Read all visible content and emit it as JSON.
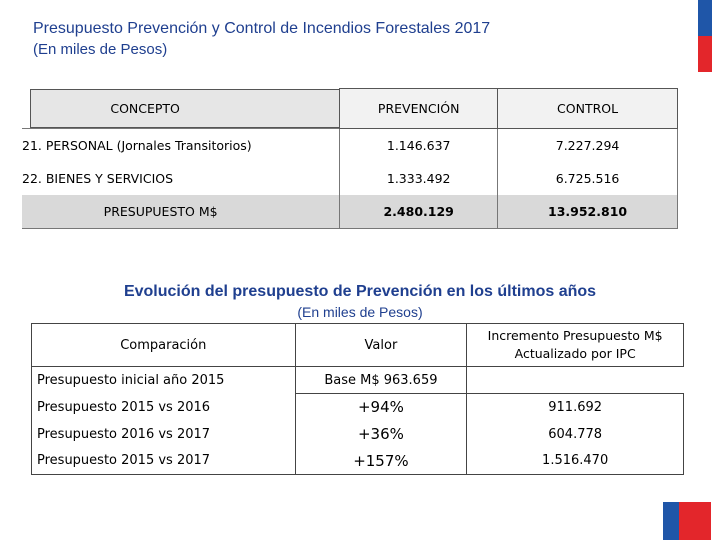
{
  "header": {
    "title": "Presupuesto Prevención y Control de Incendios Forestales 2017",
    "subtitle": "(En miles de Pesos)"
  },
  "budget_table": {
    "headers": [
      "CONCEPTO",
      "PREVENCIÓN",
      "CONTROL"
    ],
    "rows": [
      {
        "concept": "21. PERSONAL (Jornales Transitorios)",
        "prevencion": "1.146.637",
        "control": "7.227.294"
      },
      {
        "concept": "22. BIENES Y SERVICIOS",
        "prevencion": "1.333.492",
        "control": "6.725.516"
      }
    ],
    "total": {
      "concept": "PRESUPUESTO   M$",
      "prevencion": "2.480.129",
      "control": "13.952.810"
    }
  },
  "evolution": {
    "title": "Evolución del presupuesto de Prevención en los últimos años",
    "subtitle": "(En miles de Pesos)"
  },
  "evolution_table": {
    "headers": [
      "Comparación",
      "Valor",
      "Incremento Presupuesto M$ Actualizado por IPC"
    ],
    "rows": [
      {
        "label": "Presupuesto inicial año 2015",
        "valor": "Base M$ 963.659",
        "incremento": ""
      },
      {
        "label": "Presupuesto 2015 vs 2016",
        "valor": "+94%",
        "incremento": "911.692"
      },
      {
        "label": "Presupuesto 2016 vs 2017",
        "valor": "+36%",
        "incremento": "604.778"
      },
      {
        "label": "Presupuesto 2015 vs 2017",
        "valor": "+157%",
        "incremento": "1.516.470"
      }
    ]
  },
  "colors": {
    "title_blue": "#1f3f8f",
    "flag_blue": "#1f56a8",
    "flag_red": "#e3262b"
  }
}
